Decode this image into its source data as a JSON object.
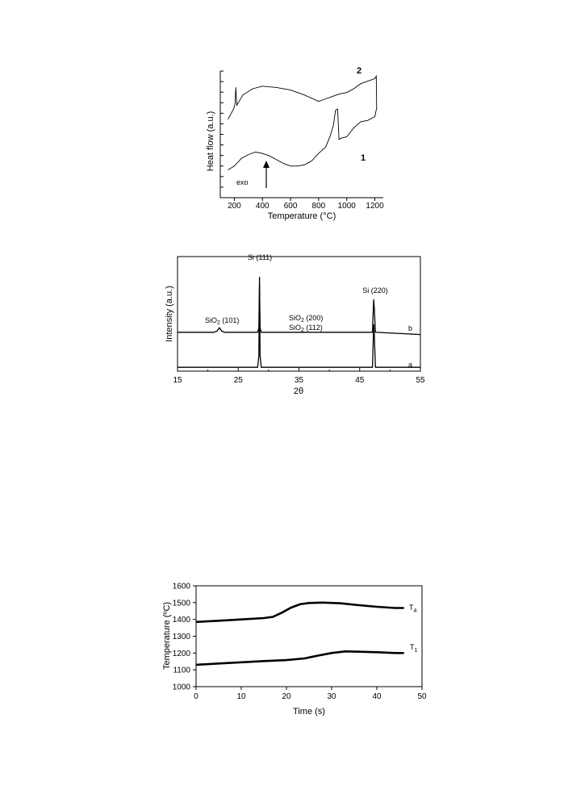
{
  "chart_data": [
    {
      "type": "line",
      "xlabel": "Temperature (°C)",
      "ylabel": "Heat flow (a.u.)",
      "xlim": [
        100,
        1260
      ],
      "xticks": [
        200,
        400,
        600,
        800,
        1000,
        1200
      ],
      "ylim": [
        0,
        100
      ],
      "grid": false,
      "annotations": {
        "exo": "exo"
      },
      "series": [
        {
          "name": "2",
          "x": [
            155,
            195,
            205,
            210,
            218,
            260,
            330,
            400,
            500,
            600,
            700,
            800,
            850,
            900,
            950,
            1000,
            1050,
            1100,
            1150,
            1200,
            1210,
            1213
          ],
          "values": [
            62,
            70,
            74,
            87,
            73,
            81,
            86,
            88,
            87,
            85,
            81,
            76,
            78,
            80,
            82,
            83,
            86,
            90,
            92,
            94,
            96,
            71
          ]
        },
        {
          "name": "1",
          "x": [
            155,
            200,
            250,
            300,
            350,
            400,
            450,
            500,
            550,
            600,
            650,
            700,
            750,
            800,
            850,
            880,
            905,
            920,
            935,
            945,
            960,
            1000,
            1050,
            1100,
            1150,
            1200,
            1213
          ],
          "values": [
            22,
            25,
            31,
            34,
            36,
            35,
            33,
            30,
            27,
            25,
            25,
            26,
            29,
            35,
            40,
            48,
            57,
            69,
            70,
            46,
            47,
            48,
            55,
            60,
            61,
            64,
            71
          ]
        }
      ]
    },
    {
      "type": "line",
      "xlabel": "2θ",
      "ylabel": "Intensity (a.u.)",
      "xlim": [
        15,
        55
      ],
      "xticks": [
        15,
        25,
        35,
        45,
        55
      ],
      "ylim": [
        0,
        100
      ],
      "grid": false,
      "annotations": {
        "si111": "Si (111)",
        "si220": "Si (220)",
        "sio2_101": "SiO",
        "sio2_101_sub": "2",
        "sio2_101_hkl": " (101)",
        "sio2_200": "SiO",
        "sio2_200_sub": "2",
        "sio2_200_hkl": " (200)",
        "sio2_112": "SiO",
        "sio2_112_sub": "2",
        "sio2_112_hkl": " (112)"
      },
      "series": [
        {
          "name": "b",
          "x": [
            15,
            21.0,
            21.5,
            21.9,
            22.3,
            22.8,
            28.2,
            28.4,
            28.5,
            28.6,
            28.8,
            36,
            40,
            47.1,
            47.3,
            47.4,
            47.6,
            55
          ],
          "values": [
            33,
            33,
            34,
            37,
            34,
            33,
            33,
            37,
            76,
            37,
            33,
            33,
            33,
            33,
            62,
            55,
            33,
            31
          ]
        },
        {
          "name": "a",
          "x": [
            15,
            28.2,
            28.4,
            28.5,
            28.6,
            28.8,
            47.1,
            47.3,
            47.4,
            47.6,
            55
          ],
          "values": [
            2,
            2,
            12,
            82,
            12,
            2,
            2,
            40,
            32,
            2,
            2
          ]
        }
      ]
    },
    {
      "type": "line",
      "xlabel": "Time (s)",
      "ylabel": "Temperature (ºC)",
      "xlim": [
        0,
        50
      ],
      "xticks": [
        0,
        10,
        20,
        30,
        40,
        50
      ],
      "ylim": [
        1000,
        1600
      ],
      "yticks": [
        1000,
        1100,
        1200,
        1300,
        1400,
        1500,
        1600
      ],
      "grid": false,
      "series": [
        {
          "name": "T",
          "name_sub": "4",
          "x": [
            0,
            5,
            10,
            15,
            17,
            19,
            21,
            23,
            25,
            28,
            32,
            36,
            40,
            44,
            46
          ],
          "values": [
            1385,
            1392,
            1400,
            1408,
            1415,
            1440,
            1470,
            1490,
            1498,
            1500,
            1496,
            1485,
            1475,
            1468,
            1468
          ]
        },
        {
          "name": "T",
          "name_sub": "1",
          "x": [
            0,
            5,
            10,
            15,
            20,
            24,
            27,
            30,
            33,
            36,
            40,
            44,
            46
          ],
          "values": [
            1130,
            1138,
            1145,
            1152,
            1158,
            1168,
            1185,
            1200,
            1210,
            1208,
            1205,
            1200,
            1200
          ]
        }
      ]
    }
  ]
}
